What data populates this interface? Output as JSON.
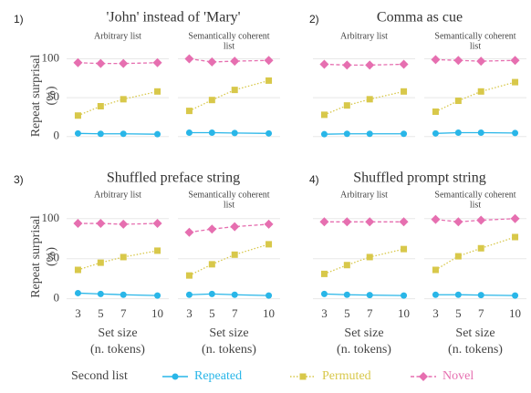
{
  "chart_data": {
    "type": "line",
    "x": [
      3,
      5,
      7,
      10
    ],
    "xticks": [
      3,
      5,
      7,
      10
    ],
    "xlim": [
      2,
      11
    ],
    "ylim": [
      -5,
      110
    ],
    "yticks": [
      0,
      50,
      100
    ],
    "grid": true,
    "xlabel": [
      "Set size",
      "(n. tokens)"
    ],
    "ylabel": [
      "Repeat surprisal",
      "(%)"
    ],
    "legend_title": "Second list",
    "series": [
      {
        "name": "Repeated",
        "color": "#29b6e8",
        "dash": "solid",
        "marker": "circle"
      },
      {
        "name": "Permuted",
        "color": "#d8c84a",
        "dash": "dotted",
        "marker": "square"
      },
      {
        "name": "Novel",
        "color": "#e66fb0",
        "dash": "dashed",
        "marker": "diamond"
      }
    ],
    "panels": [
      {
        "label": "1)",
        "title": "'John' instead of 'Mary'",
        "facets": [
          {
            "subtitle": [
              "Arbitrary list"
            ],
            "values": [
              [
                4,
                3.5,
                3.5,
                3
              ],
              [
                27,
                39,
                48,
                58
              ],
              [
                95,
                94,
                94,
                95
              ]
            ]
          },
          {
            "subtitle": [
              "Semantically coherent",
              "list"
            ],
            "values": [
              [
                5,
                5,
                4.5,
                4
              ],
              [
                33,
                47,
                60,
                72
              ],
              [
                100,
                96,
                97,
                98
              ]
            ]
          }
        ]
      },
      {
        "label": "2)",
        "title": "Comma as cue",
        "facets": [
          {
            "subtitle": [
              "Arbitrary list"
            ],
            "values": [
              [
                3,
                3.5,
                3.5,
                3.5
              ],
              [
                28,
                40,
                48,
                58
              ],
              [
                93,
                92,
                92,
                93
              ]
            ]
          },
          {
            "subtitle": [
              "Semantically coherent",
              "list"
            ],
            "values": [
              [
                4,
                5,
                5,
                4.5
              ],
              [
                32,
                46,
                58,
                70
              ],
              [
                99,
                98,
                97,
                98
              ]
            ]
          }
        ]
      },
      {
        "label": "3)",
        "title": "Shuffled preface string",
        "facets": [
          {
            "subtitle": [
              "Arbitrary list"
            ],
            "values": [
              [
                7,
                6,
                5,
                4
              ],
              [
                36,
                45,
                52,
                60
              ],
              [
                94,
                94,
                93,
                94
              ]
            ]
          },
          {
            "subtitle": [
              "Semantically coherent",
              "list"
            ],
            "values": [
              [
                5,
                6,
                5,
                4
              ],
              [
                29,
                43,
                55,
                68
              ],
              [
                83,
                87,
                90,
                93
              ]
            ]
          }
        ]
      },
      {
        "label": "4)",
        "title": "Shuffled prompt string",
        "facets": [
          {
            "subtitle": [
              "Arbitrary list"
            ],
            "values": [
              [
                6,
                5,
                4.5,
                4
              ],
              [
                31,
                42,
                52,
                62
              ],
              [
                96,
                96,
                96,
                96
              ]
            ]
          },
          {
            "subtitle": [
              "Semantically coherent",
              "list"
            ],
            "values": [
              [
                5,
                5,
                4.5,
                4
              ],
              [
                36,
                53,
                63,
                77
              ],
              [
                99,
                96,
                98,
                100
              ]
            ]
          }
        ]
      }
    ]
  }
}
